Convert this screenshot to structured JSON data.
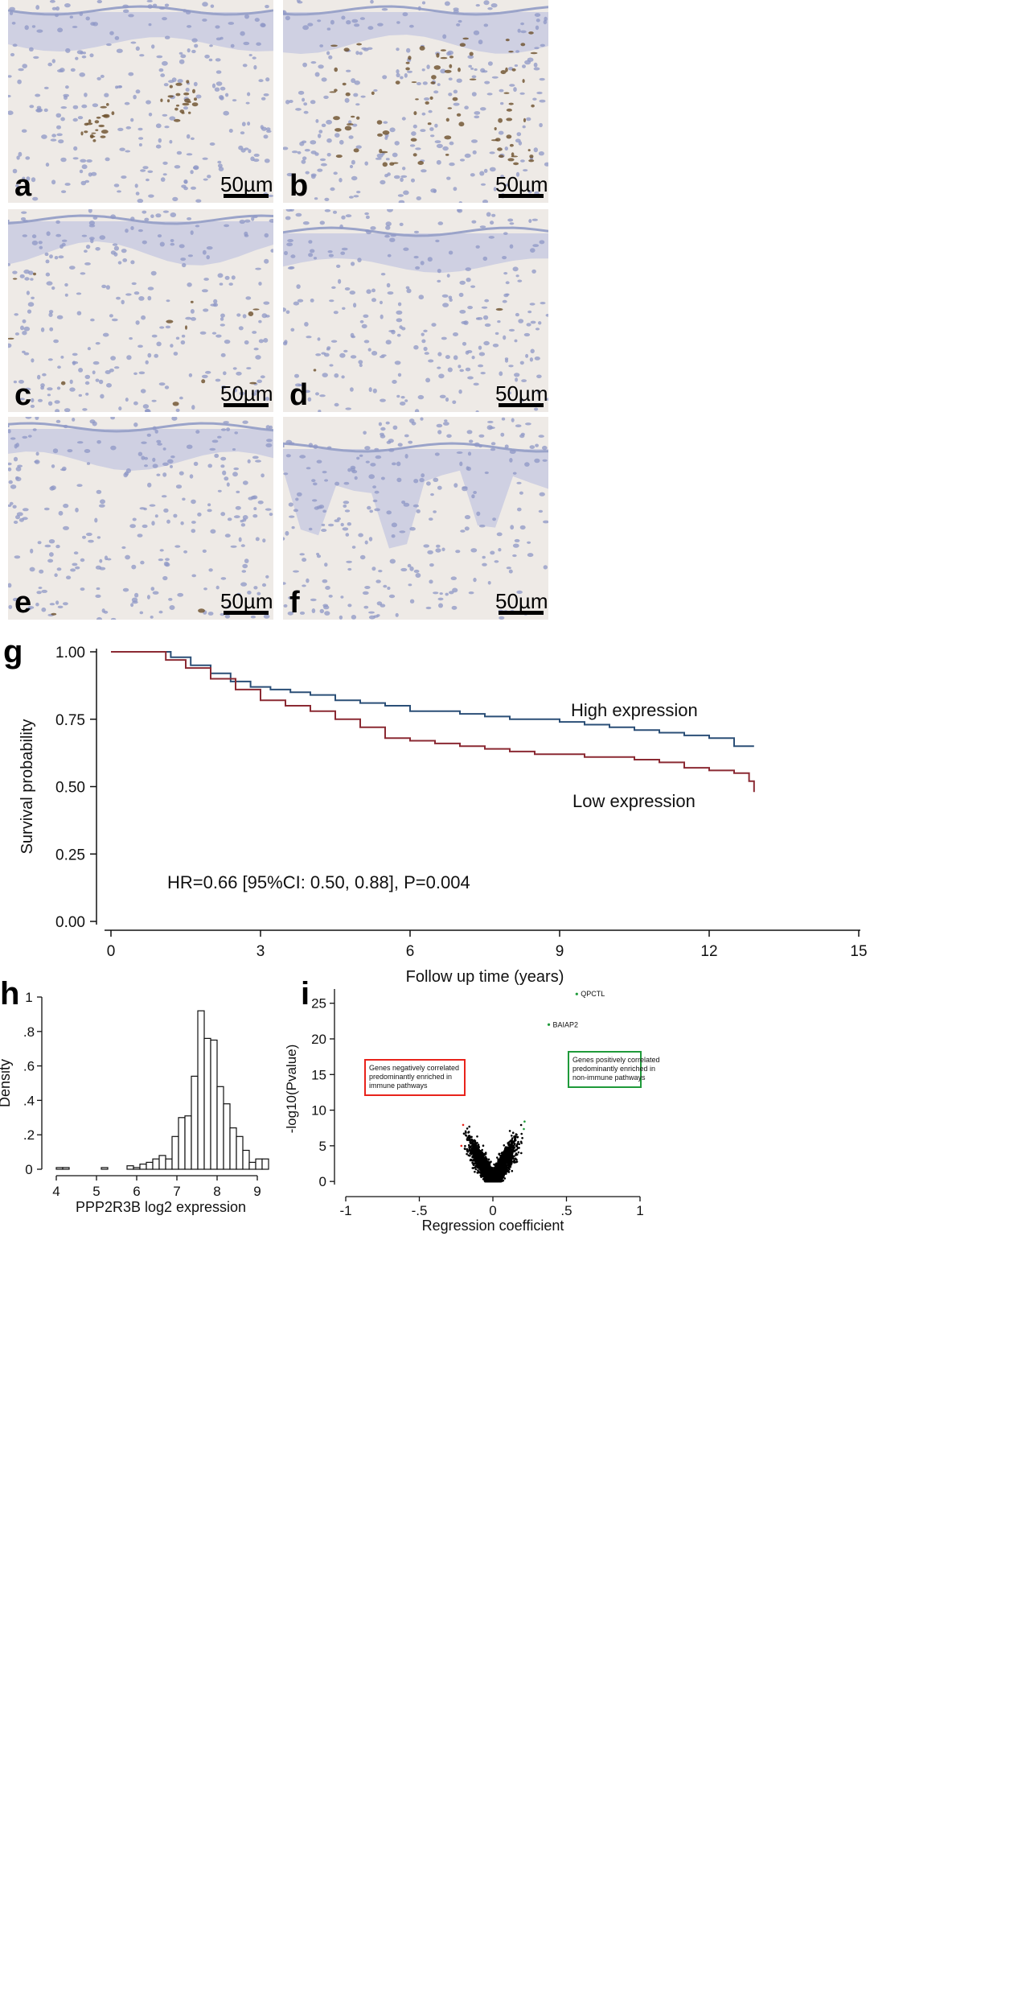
{
  "panels": [
    {
      "label": "a",
      "scale": "50µm",
      "stain": "dermal-nests"
    },
    {
      "label": "b",
      "scale": "50µm",
      "stain": "strong-basal"
    },
    {
      "label": "c",
      "scale": "50µm",
      "stain": "faint"
    },
    {
      "label": "d",
      "scale": "50µm",
      "stain": "negative"
    },
    {
      "label": "e",
      "scale": "50µm",
      "stain": "negative"
    },
    {
      "label": "f",
      "scale": "50µm",
      "stain": "negative-ridges"
    }
  ],
  "colors": {
    "tissue_bg": "#eeeae6",
    "epidermis": "#c9cbe0",
    "nuclei": "#8d97c6",
    "dab": "#6b4f2a",
    "high": "#2b4f77",
    "low": "#8b2a33",
    "neg": "#e8231b",
    "pos": "#1f9a3a"
  },
  "chart_data": [
    {
      "panel_label": "g",
      "type": "line",
      "xlabel": "Follow up time (years)",
      "ylabel": "Survival probability",
      "xlim": [
        0,
        15
      ],
      "ylim": [
        0,
        1
      ],
      "xticks": [
        "0",
        "3",
        "6",
        "9",
        "12",
        "15"
      ],
      "yticks": [
        "0.00",
        "0.25",
        "0.50",
        "0.75",
        "1.00"
      ],
      "annotation": "HR=0.66 [95%CI: 0.50, 0.88], P=0.004",
      "series": [
        {
          "name": "High expression",
          "color": "#2b4f77",
          "x": [
            0,
            0.8,
            1.2,
            1.6,
            2.0,
            2.4,
            2.8,
            3.2,
            3.6,
            4.0,
            4.5,
            5.0,
            5.5,
            6.0,
            6.5,
            7.0,
            7.5,
            8.0,
            8.5,
            9.0,
            9.5,
            10.0,
            10.5,
            11.0,
            11.5,
            12.0,
            12.5,
            12.9
          ],
          "y": [
            1.0,
            1.0,
            0.98,
            0.95,
            0.92,
            0.89,
            0.87,
            0.86,
            0.85,
            0.84,
            0.82,
            0.81,
            0.8,
            0.78,
            0.78,
            0.77,
            0.76,
            0.75,
            0.75,
            0.74,
            0.73,
            0.72,
            0.71,
            0.7,
            0.69,
            0.68,
            0.65,
            0.65
          ]
        },
        {
          "name": "Low expression",
          "color": "#8b2a33",
          "x": [
            0,
            0.8,
            1.1,
            1.5,
            2.0,
            2.5,
            3.0,
            3.5,
            4.0,
            4.5,
            5.0,
            5.5,
            6.0,
            6.5,
            7.0,
            7.5,
            8.0,
            8.5,
            9.0,
            9.5,
            10.0,
            10.5,
            11.0,
            11.5,
            12.0,
            12.5,
            12.8,
            12.9
          ],
          "y": [
            1.0,
            1.0,
            0.97,
            0.94,
            0.9,
            0.86,
            0.82,
            0.8,
            0.78,
            0.75,
            0.72,
            0.68,
            0.67,
            0.66,
            0.65,
            0.64,
            0.63,
            0.62,
            0.62,
            0.61,
            0.61,
            0.6,
            0.59,
            0.57,
            0.56,
            0.55,
            0.52,
            0.48
          ]
        }
      ]
    },
    {
      "panel_label": "h",
      "type": "bar",
      "xlabel": "PPP2R3B log2 expression",
      "ylabel": "Density",
      "xlim": [
        3.8,
        9.4
      ],
      "ylim": [
        0,
        1
      ],
      "xticks": [
        "4",
        "5",
        "6",
        "7",
        "8",
        "9"
      ],
      "yticks": [
        "0",
        ".2",
        ".4",
        ".6",
        ".8",
        "1"
      ],
      "bin_width": 0.16,
      "bin_starts": [
        4.0,
        4.16,
        5.12,
        5.76,
        5.92,
        6.08,
        6.24,
        6.4,
        6.56,
        6.72,
        6.88,
        7.04,
        7.2,
        7.36,
        7.52,
        7.68,
        7.84,
        8.0,
        8.16,
        8.32,
        8.48,
        8.64,
        8.8,
        8.96,
        9.12
      ],
      "values": [
        0.01,
        0.01,
        0.01,
        0.02,
        0.01,
        0.03,
        0.04,
        0.06,
        0.08,
        0.06,
        0.19,
        0.3,
        0.31,
        0.54,
        0.92,
        0.76,
        0.75,
        0.48,
        0.38,
        0.24,
        0.19,
        0.11,
        0.04,
        0.06,
        0.06
      ]
    },
    {
      "panel_label": "i",
      "type": "scatter",
      "xlabel": "Regression coefficient",
      "ylabel": "-log10(Pvalue)",
      "xlim": [
        -1,
        1
      ],
      "ylim": [
        -1,
        27
      ],
      "xticks": [
        "-1",
        "-.5",
        "0",
        ".5",
        "1"
      ],
      "yticks": [
        "0",
        "5",
        "10",
        "15",
        "20",
        "25"
      ],
      "labeled_points": [
        {
          "name": "QPCTL",
          "x": 0.57,
          "y": 26.3
        },
        {
          "name": "BAIAP2",
          "x": 0.38,
          "y": 22.0
        }
      ],
      "negative_box": "Genes negatively correlated predominantly enriched in immune pathways",
      "positive_box": "Genes positively correlated predominantly enriched in non-immune pathways",
      "threshold_x": 0.2
    }
  ]
}
